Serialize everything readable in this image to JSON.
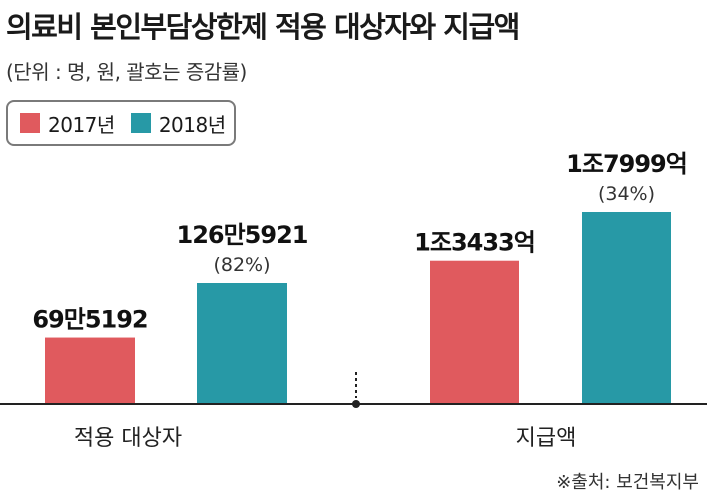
{
  "title": "의료비 본인부담상한제 적용 대상자와 지급액",
  "subtitle": "(단위 : 명, 원, 괄호는 증감률)",
  "source": "※출처: 보건복지부",
  "colors": {
    "y2017": "#e05a5e",
    "y2018": "#2799a6"
  },
  "chart_data": [
    {
      "type": "bar",
      "categories": [
        "적용 대상자"
      ],
      "series": [
        {
          "name": "2017년",
          "values": [
            695192
          ],
          "labels": [
            "69만5192"
          ]
        },
        {
          "name": "2018년",
          "values": [
            1265921
          ],
          "labels": [
            "126만5921"
          ]
        }
      ],
      "annotations": [
        "(82%)"
      ],
      "unit": "명"
    },
    {
      "type": "bar",
      "categories": [
        "지급액"
      ],
      "series": [
        {
          "name": "2017년",
          "values": [
            1343300000000
          ],
          "labels": [
            "1조3433억"
          ]
        },
        {
          "name": "2018년",
          "values": [
            1799900000000
          ],
          "labels": [
            "1조7999억"
          ]
        }
      ],
      "annotations": [
        "(34%)"
      ],
      "unit": "원"
    }
  ]
}
